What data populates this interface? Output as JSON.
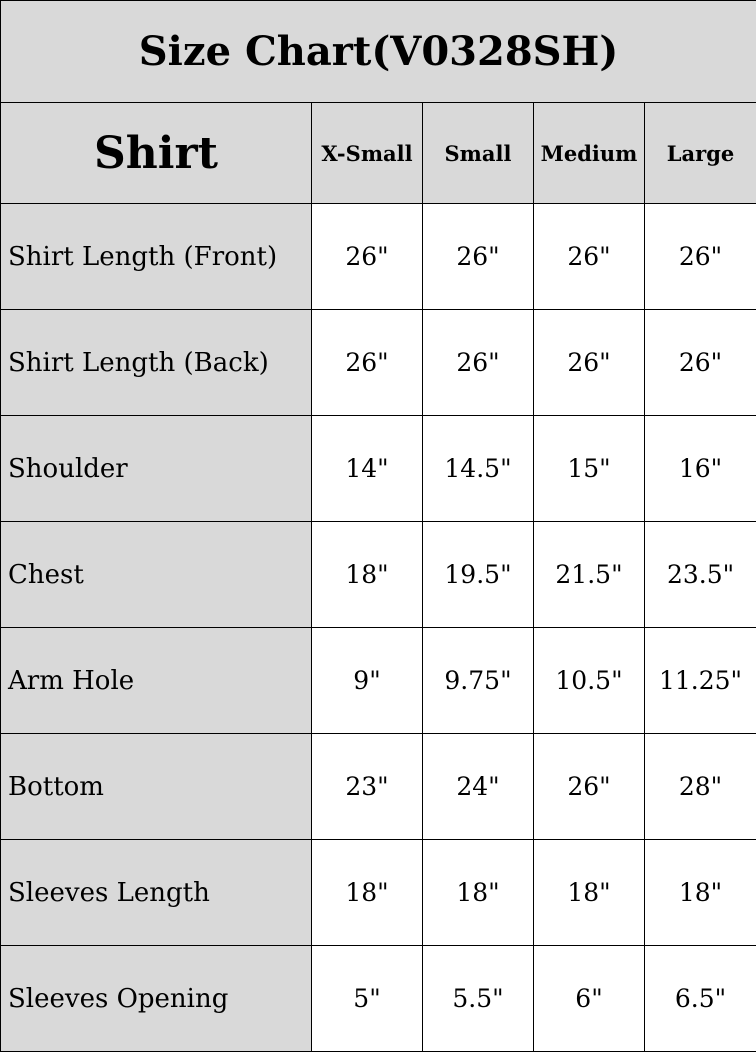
{
  "title": "Size Chart(V0328SH)",
  "header": [
    "Shirt",
    "X-Small",
    "Small",
    "Medium",
    "Large"
  ],
  "colors": {
    "header_bg": "#d9d9d9",
    "cell_bg": "#ffffff",
    "border": "#000000"
  },
  "rows": [
    {
      "label": "Shirt Length (Front)",
      "values": [
        "26\"",
        "26\"",
        "26\"",
        "26\""
      ]
    },
    {
      "label": "Shirt Length (Back)",
      "values": [
        "26\"",
        "26\"",
        "26\"",
        "26\""
      ]
    },
    {
      "label": "Shoulder",
      "values": [
        "14\"",
        "14.5\"",
        "15\"",
        "16\""
      ]
    },
    {
      "label": "Chest",
      "values": [
        "18\"",
        "19.5\"",
        "21.5\"",
        "23.5\""
      ]
    },
    {
      "label": "Arm Hole",
      "values": [
        "9\"",
        "9.75\"",
        "10.5\"",
        "11.25\""
      ]
    },
    {
      "label": "Bottom",
      "values": [
        "23\"",
        "24\"",
        "26\"",
        "28\""
      ]
    },
    {
      "label": "Sleeves Length",
      "values": [
        "18\"",
        "18\"",
        "18\"",
        "18\""
      ]
    },
    {
      "label": "Sleeves Opening",
      "values": [
        "5\"",
        "5.5\"",
        "6\"",
        "6.5\""
      ]
    }
  ]
}
